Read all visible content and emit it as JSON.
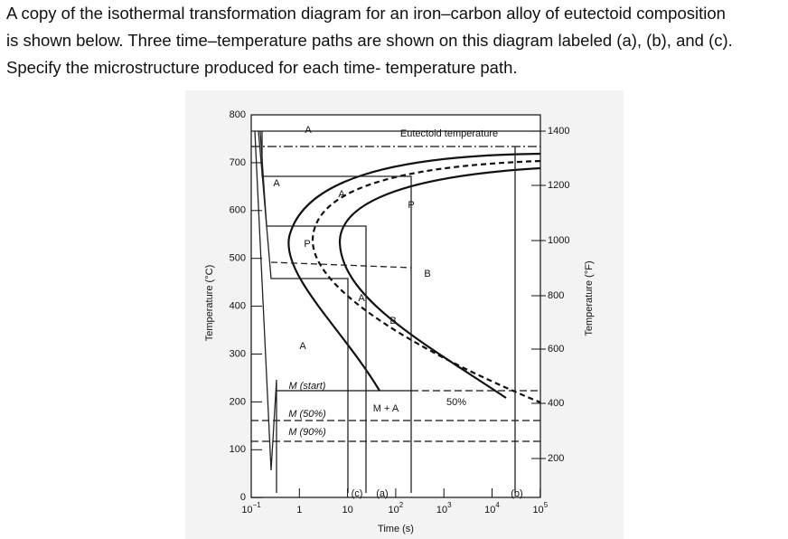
{
  "question": {
    "lines": [
      "A copy of the isothermal transformation diagram for an iron–carbon alloy of eutectoid composition",
      "is shown below. Three time–temperature paths are shown on this diagram labeled (a), (b), and (c).",
      "Specify the microstructure produced for each time- temperature path."
    ]
  },
  "diagram": {
    "y_axis_label": "Temperature (°C)",
    "y2_axis_label": "Temperature (°F)",
    "x_axis_label": "Time (s)",
    "y_ticks": [
      "800",
      "700",
      "600",
      "500",
      "400",
      "300",
      "200",
      "100",
      "0"
    ],
    "y2_ticks": [
      "1400",
      "1200",
      "1000",
      "800",
      "600",
      "400",
      "200"
    ],
    "x_ticks": [
      {
        "base": "10",
        "exp": "−1"
      },
      {
        "base": "1"
      },
      {
        "base": "10"
      },
      {
        "base": "10",
        "exp": "2"
      },
      {
        "base": "10",
        "exp": "3"
      },
      {
        "base": "10",
        "exp": "4"
      },
      {
        "base": "10",
        "exp": "5"
      }
    ],
    "labels": [
      "A",
      "Eutectoid temperature",
      "A",
      "P",
      "B",
      "A",
      "M (start)",
      "M + A",
      "50%",
      "M (50%)",
      "M (90%)",
      "P",
      "A",
      "A",
      "B",
      "(c)",
      "(a)",
      "(b)"
    ]
  }
}
